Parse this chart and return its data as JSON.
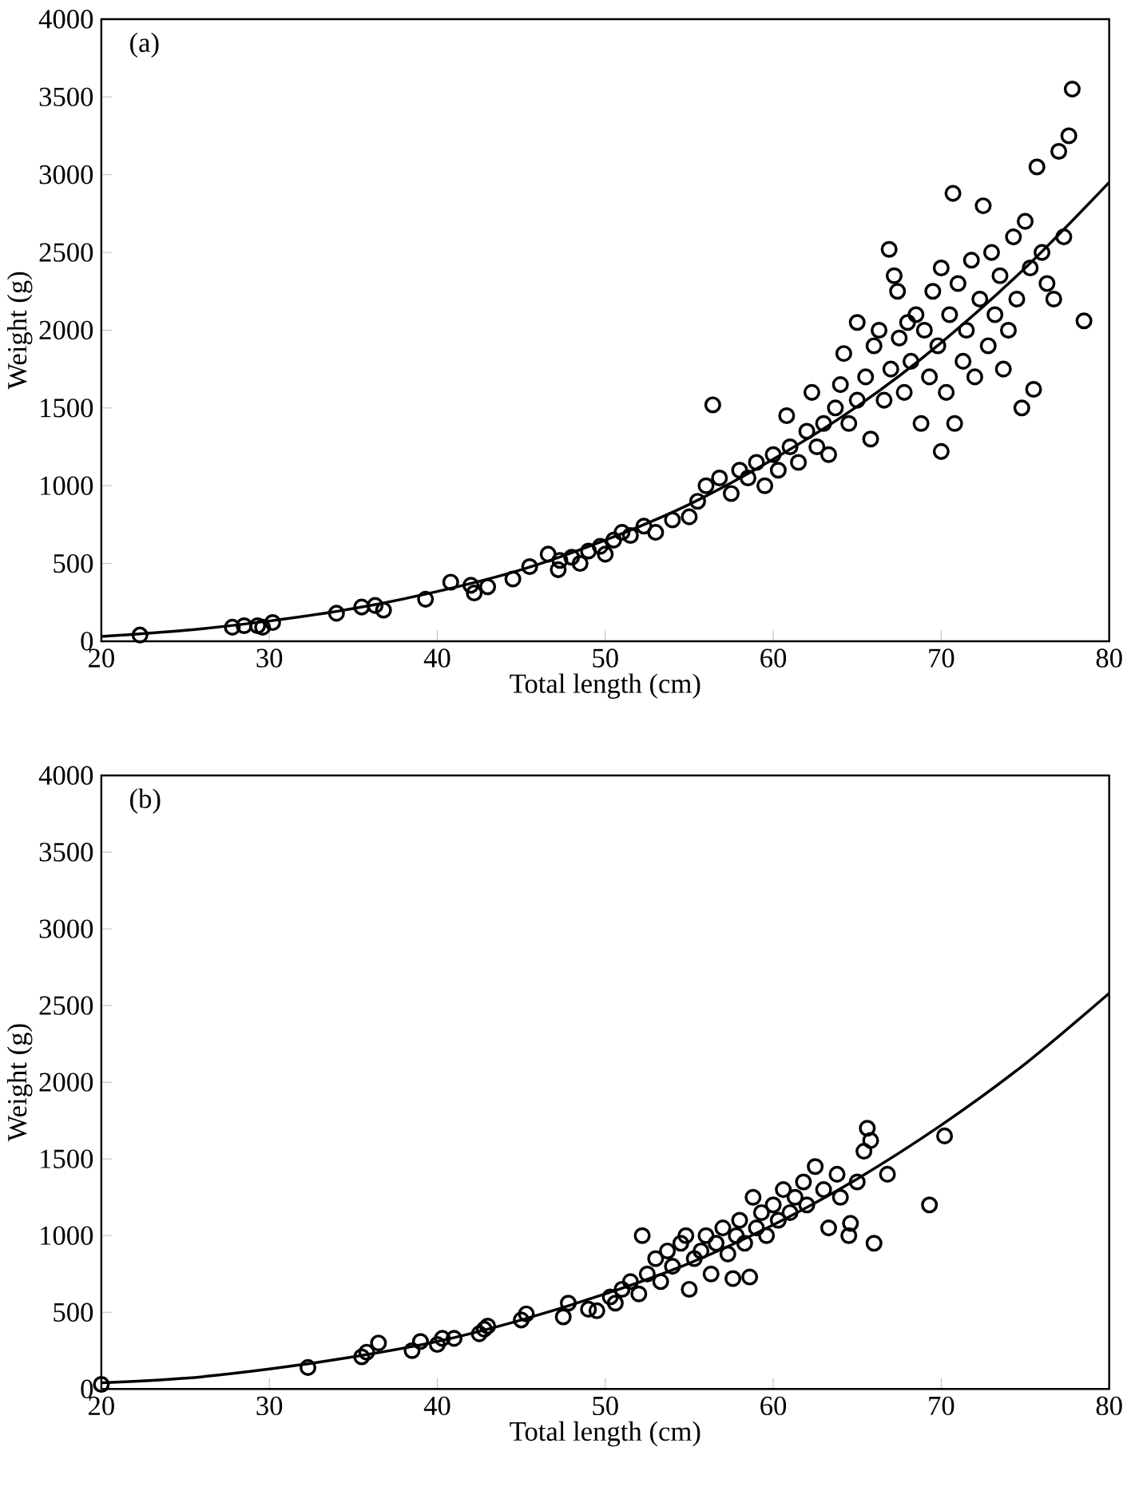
{
  "chart_data": [
    {
      "type": "scatter",
      "title": "(a)",
      "xlabel": "Total length (cm)",
      "ylabel": "Weight (g)",
      "xlim": [
        20,
        80
      ],
      "ylim": [
        0,
        4000
      ],
      "xticks": [
        20,
        30,
        40,
        50,
        60,
        70,
        80
      ],
      "yticks": [
        0,
        500,
        1000,
        1500,
        2000,
        2500,
        3000,
        3500,
        4000
      ],
      "series": [
        {
          "type": "scatter",
          "marker": "circle",
          "color": "#000000",
          "x": [
            22.3,
            27.8,
            28.5,
            29.3,
            29.6,
            30.2,
            34,
            35.5,
            36.3,
            36.8,
            39.3,
            40.8,
            42,
            42.2,
            43,
            44.5,
            45.5,
            46.6,
            47.3,
            47.2,
            48,
            48.5,
            49,
            49.7,
            50,
            50.5,
            51,
            51.5,
            52.3,
            53,
            54,
            55,
            55.5,
            56,
            56.4,
            56.8,
            57.5,
            58,
            58.5,
            59,
            59.5,
            60,
            60.3,
            60.8,
            61,
            61.5,
            62,
            62.3,
            62.6,
            63,
            63.3,
            63.7,
            64,
            64.2,
            64.5,
            65,
            65,
            65.5,
            65.8,
            66,
            66.3,
            66.6,
            66.9,
            67,
            67.2,
            67.4,
            67.5,
            67.8,
            68,
            68.2,
            68.5,
            68.8,
            69,
            69.3,
            69.5,
            69.8,
            70,
            70,
            70.3,
            70.5,
            70.7,
            70.8,
            71,
            71.3,
            71.5,
            71.8,
            72,
            72.3,
            72.5,
            72.8,
            73,
            73.2,
            73.5,
            73.7,
            74,
            74.3,
            74.5,
            74.8,
            75,
            75.3,
            75.5,
            75.7,
            76,
            76.3,
            76.7,
            77,
            77.3,
            77.6,
            77.8,
            78.5
          ],
          "values": [
            40,
            90,
            100,
            100,
            90,
            120,
            180,
            220,
            230,
            200,
            270,
            380,
            360,
            310,
            350,
            400,
            480,
            560,
            520,
            460,
            540,
            500,
            580,
            610,
            560,
            650,
            700,
            680,
            740,
            700,
            780,
            800,
            900,
            1000,
            1520,
            1050,
            950,
            1100,
            1050,
            1150,
            1000,
            1200,
            1100,
            1450,
            1250,
            1150,
            1350,
            1600,
            1250,
            1400,
            1200,
            1500,
            1650,
            1850,
            1400,
            1550,
            2050,
            1700,
            1300,
            1900,
            2000,
            1550,
            2520,
            1750,
            2350,
            2250,
            1950,
            1600,
            2050,
            1800,
            2100,
            1400,
            2000,
            1700,
            2250,
            1900,
            1220,
            2400,
            1600,
            2100,
            2880,
            1400,
            2300,
            1800,
            2000,
            2450,
            1700,
            2200,
            2800,
            1900,
            2500,
            2100,
            2350,
            1750,
            2000,
            2600,
            2200,
            1500,
            2700,
            2400,
            1620,
            3050,
            2500,
            2300,
            2200,
            3150,
            2600,
            3250,
            3550,
            2060
          ]
        },
        {
          "type": "line",
          "line_style": "solid",
          "color": "#000000",
          "x": [
            20,
            25,
            30,
            35,
            40,
            45,
            50,
            55,
            60,
            65,
            70,
            75,
            80
          ],
          "values": [
            30,
            70,
            130,
            210,
            320,
            460,
            650,
            880,
            1170,
            1510,
            1920,
            2400,
            2950
          ]
        }
      ]
    },
    {
      "type": "scatter",
      "title": "(b)",
      "xlabel": "Total length (cm)",
      "ylabel": "Weight (g)",
      "xlim": [
        20,
        80
      ],
      "ylim": [
        0,
        4000
      ],
      "xticks": [
        20,
        30,
        40,
        50,
        60,
        70,
        80
      ],
      "yticks": [
        0,
        500,
        1000,
        1500,
        2000,
        2500,
        3000,
        3500,
        4000
      ],
      "series": [
        {
          "type": "scatter",
          "marker": "circle",
          "color": "#000000",
          "x": [
            20,
            32.3,
            35.5,
            35.8,
            36.5,
            38.5,
            39,
            40,
            40.3,
            41,
            42.5,
            42.8,
            43,
            45,
            45.3,
            47.5,
            47.8,
            49,
            49.5,
            50.3,
            50.6,
            51,
            51.5,
            52,
            52.2,
            52.5,
            53,
            53.3,
            53.7,
            54,
            54.5,
            54.8,
            55,
            55.3,
            55.7,
            56,
            56.3,
            56.6,
            57,
            57.3,
            57.6,
            57.8,
            58,
            58.3,
            58.6,
            58.8,
            59,
            59.3,
            59.6,
            60,
            60.3,
            60.6,
            61,
            61.3,
            61.8,
            62,
            62.5,
            63,
            63.3,
            63.8,
            64,
            64.5,
            64.6,
            65,
            65.4,
            65.6,
            65.8,
            66,
            66.8,
            69.3,
            70.2
          ],
          "values": [
            30,
            140,
            210,
            240,
            300,
            250,
            310,
            290,
            330,
            330,
            360,
            390,
            410,
            450,
            490,
            470,
            560,
            520,
            510,
            600,
            560,
            650,
            700,
            620,
            1000,
            750,
            850,
            700,
            900,
            800,
            950,
            1000,
            650,
            850,
            900,
            1000,
            750,
            950,
            1050,
            880,
            720,
            1000,
            1100,
            950,
            730,
            1250,
            1050,
            1150,
            1000,
            1200,
            1100,
            1300,
            1150,
            1250,
            1350,
            1200,
            1450,
            1300,
            1050,
            1400,
            1250,
            1000,
            1080,
            1350,
            1550,
            1700,
            1620,
            950,
            1400,
            1200,
            1650
          ]
        },
        {
          "type": "line",
          "line_style": "solid",
          "color": "#000000",
          "x": [
            20,
            25,
            30,
            35,
            40,
            45,
            50,
            55,
            60,
            65,
            70,
            75,
            80
          ],
          "values": [
            40,
            70,
            130,
            210,
            310,
            450,
            620,
            820,
            1070,
            1370,
            1720,
            2120,
            2580
          ]
        }
      ]
    }
  ]
}
